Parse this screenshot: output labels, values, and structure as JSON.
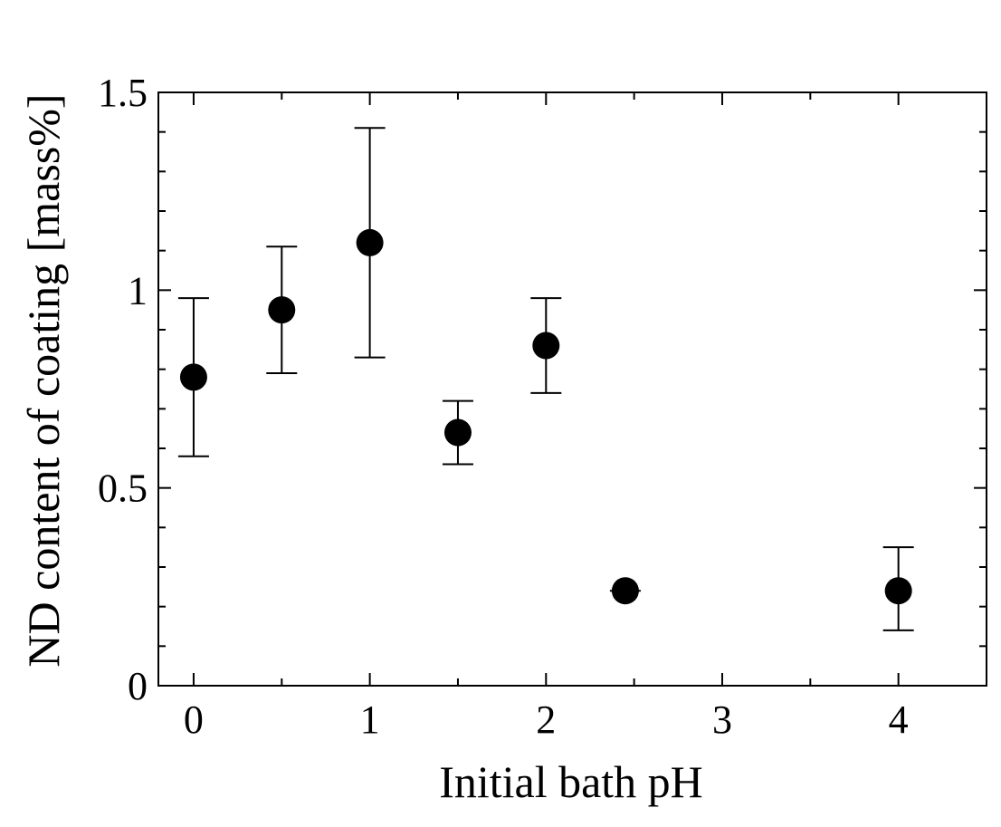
{
  "chart_data": {
    "type": "scatter",
    "title": "",
    "xlabel": "Initial bath pH",
    "ylabel": "ND content of coating [mass%]",
    "xlim": [
      -0.2,
      4.5
    ],
    "ylim": [
      0,
      1.5
    ],
    "x_ticks": [
      0,
      1,
      2,
      3,
      4
    ],
    "x_tick_labels": [
      "0",
      "1",
      "2",
      "3",
      "4"
    ],
    "x_minor_ticks": [
      0.5,
      1.5,
      2.5,
      3.5
    ],
    "y_ticks": [
      0,
      0.5,
      1,
      1.5
    ],
    "y_tick_labels": [
      "0",
      "0.5",
      "1",
      "1.5"
    ],
    "y_minor_ticks": [
      0.1,
      0.2,
      0.3,
      0.4,
      0.6,
      0.7,
      0.8,
      0.9,
      1.1,
      1.2,
      1.3,
      1.4
    ],
    "grid": false,
    "legend": "none",
    "marker_color": "#000000",
    "series": [
      {
        "points": [
          {
            "x": 0.0,
            "y": 0.78,
            "err_low": 0.58,
            "err_high": 0.98
          },
          {
            "x": 0.5,
            "y": 0.95,
            "err_low": 0.79,
            "err_high": 1.11
          },
          {
            "x": 1.0,
            "y": 1.12,
            "err_low": 0.83,
            "err_high": 1.41
          },
          {
            "x": 1.5,
            "y": 0.64,
            "err_low": 0.56,
            "err_high": 0.72
          },
          {
            "x": 2.0,
            "y": 0.86,
            "err_low": 0.74,
            "err_high": 0.98
          },
          {
            "x": 2.45,
            "y": 0.24,
            "err_low": 0.24,
            "err_high": 0.24
          },
          {
            "x": 4.0,
            "y": 0.24,
            "err_low": 0.14,
            "err_high": 0.35
          }
        ]
      }
    ]
  }
}
